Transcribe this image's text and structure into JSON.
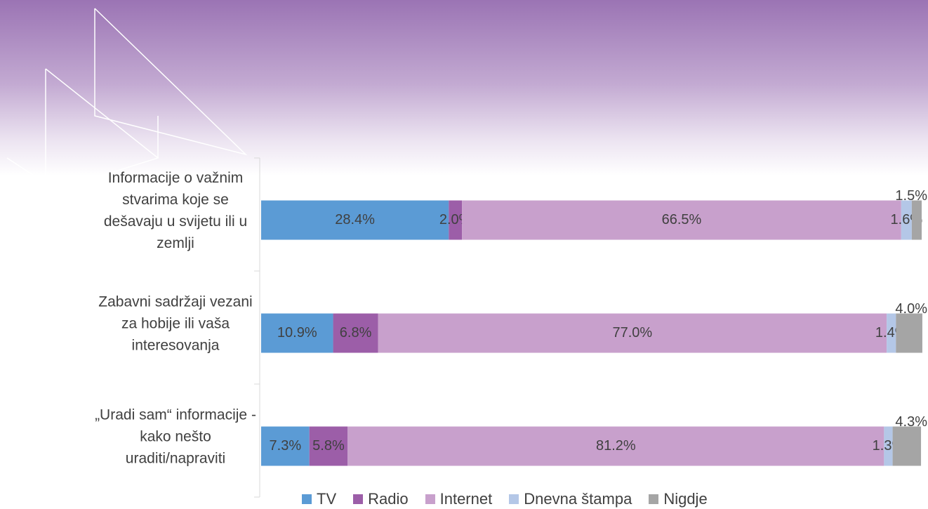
{
  "chart_data": {
    "type": "stacked-bar-horizontal",
    "categories": [
      "Informacije o važnim stvarima koje se dešavaju u svijetu ili u zemlji",
      "Zabavni sadržaji vezani za hobije ili vaša interesovanja",
      "„Uradi sam“ informacije - kako nešto uraditi/napraviti"
    ],
    "xlim": [
      0,
      100
    ],
    "series": [
      {
        "name": "TV",
        "color": "#5b9bd5",
        "values": [
          28.4,
          10.9,
          7.3
        ],
        "value_labels": [
          "28.4%",
          "10.9%",
          "7.3%"
        ]
      },
      {
        "name": "Radio",
        "color": "#9c5ea8",
        "values": [
          2.0,
          6.8,
          5.8
        ],
        "value_labels": [
          "2.0%",
          "6.8%",
          "5.8%"
        ]
      },
      {
        "name": "Internet",
        "color": "#c8a0cc",
        "values": [
          66.5,
          77.0,
          81.2
        ],
        "value_labels": [
          "66.5%",
          "77.0%",
          "81.2%"
        ]
      },
      {
        "name": "Dnevna štampa",
        "color": "#b4c7e7",
        "values": [
          1.6,
          1.4,
          1.3
        ],
        "value_labels": [
          "1.6%",
          "1.4%",
          "1.3%"
        ]
      },
      {
        "name": "Nigdje",
        "color": "#a5a5a5",
        "values": [
          1.5,
          4.0,
          4.3
        ],
        "value_labels": [
          "1.5%",
          "4.0%",
          "4.3%"
        ]
      }
    ],
    "legend": "bottom"
  }
}
